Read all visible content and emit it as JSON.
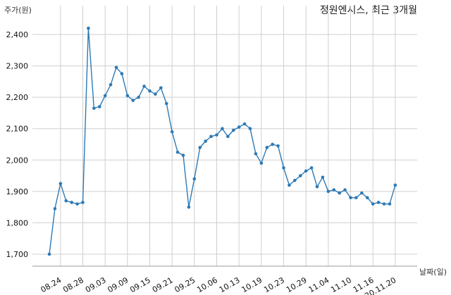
{
  "chart_data": {
    "type": "line",
    "title": "정원엔시스, 최근 3개월",
    "ylabel": "주가(원)",
    "xlabel": "날짜(일)",
    "ylim": [
      1650,
      2500
    ],
    "grid": true,
    "color": "#2e7ab5",
    "y_ticks": [
      1700,
      1800,
      1900,
      2000,
      2100,
      2200,
      2300,
      2400
    ],
    "y_tick_labels": [
      "1,700",
      "1,800",
      "1,900",
      "2,000",
      "2,100",
      "2,200",
      "2,300",
      "2,400"
    ],
    "x_tick_labels": [
      "08.24",
      "08.28",
      "09.03",
      "09.09",
      "09.15",
      "09.21",
      "09.25",
      "10.06",
      "10.13",
      "10.19",
      "10.23",
      "10.29",
      "11.04",
      "11.10",
      "11.16",
      "20.11.20"
    ],
    "x_tick_indices": [
      2,
      6,
      10,
      14,
      18,
      22,
      26,
      30,
      34,
      38,
      42,
      46,
      50,
      54,
      58,
      62
    ],
    "series": [
      {
        "values": [
          1700,
          1845,
          1925,
          1870,
          1865,
          1860,
          1865,
          2420,
          2165,
          2170,
          2205,
          2240,
          2295,
          2275,
          2205,
          2190,
          2200,
          2235,
          2220,
          2210,
          2230,
          2180,
          2090,
          2025,
          2015,
          1850,
          1940,
          2040,
          2060,
          2075,
          2080,
          2100,
          2075,
          2095,
          2105,
          2115,
          2100,
          2020,
          1990,
          2040,
          2050,
          2045,
          1975,
          1920,
          1935,
          1950,
          1965,
          1975,
          1915,
          1945,
          1900,
          1905,
          1895,
          1905,
          1880,
          1880,
          1895,
          1880,
          1860,
          1865,
          1860,
          1860,
          1920
        ]
      }
    ]
  }
}
